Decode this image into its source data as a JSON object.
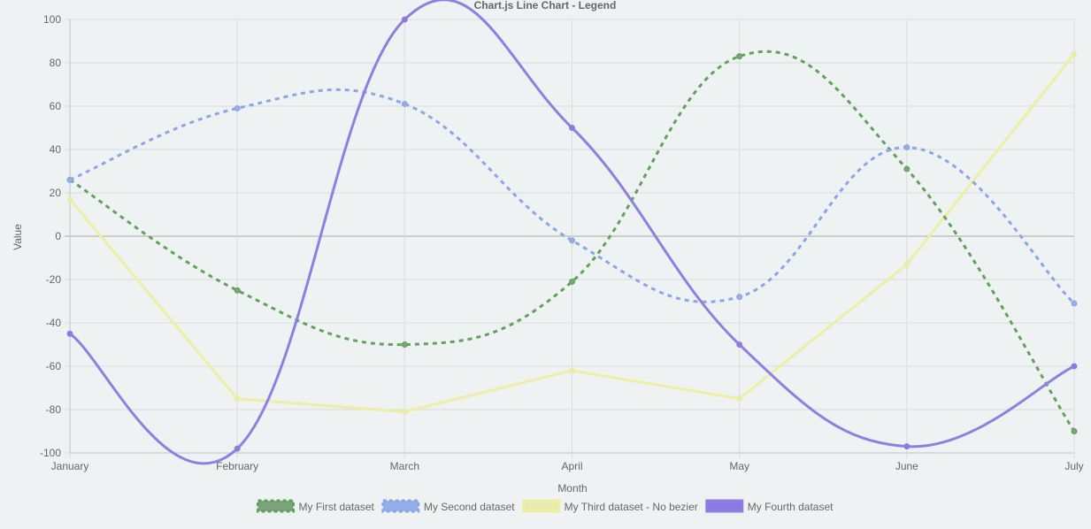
{
  "chart_data": {
    "type": "line",
    "title": "Chart.js Line Chart - Legend",
    "xlabel": "Month",
    "ylabel": "Value",
    "categories": [
      "January",
      "February",
      "March",
      "April",
      "May",
      "June",
      "July"
    ],
    "ylim": [
      -100,
      100
    ],
    "y_ticks": [
      100,
      80,
      60,
      40,
      20,
      0,
      -20,
      -40,
      -60,
      -80,
      -100
    ],
    "grid": true,
    "legend_position": "bottom",
    "series": [
      {
        "name": "My First dataset",
        "values": [
          26,
          -25,
          -50,
          -21,
          83,
          31,
          -90
        ],
        "color": "#62a05d",
        "fill": "#7aa37a",
        "dashed": true,
        "curved": true
      },
      {
        "name": "My Second dataset",
        "values": [
          26,
          59,
          61,
          -2,
          -28,
          41,
          -31
        ],
        "color": "#8aa6e8",
        "fill": "#93aee8",
        "dashed": true,
        "curved": true
      },
      {
        "name": "My Third dataset - No bezier",
        "values": [
          17,
          -75,
          -81,
          -62,
          -75,
          -13,
          84
        ],
        "color": "#ecefa3",
        "fill": "#e8eab0",
        "dashed": false,
        "curved": false
      },
      {
        "name": "My Fourth dataset",
        "values": [
          -45,
          -98,
          100,
          50,
          -50,
          -97,
          -60
        ],
        "color": "#8f7fe0",
        "fill": "#8c79e3",
        "dashed": false,
        "curved": true
      }
    ]
  }
}
